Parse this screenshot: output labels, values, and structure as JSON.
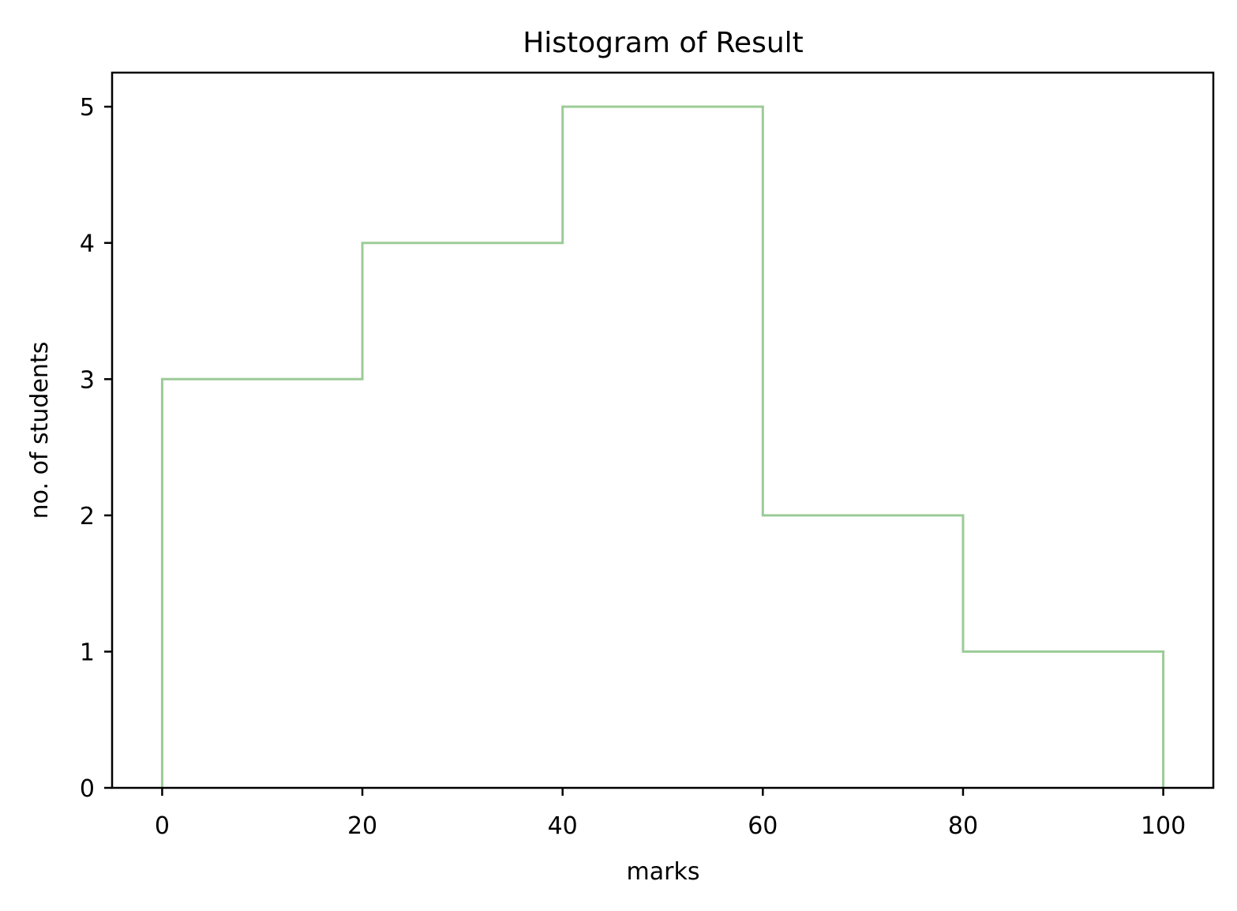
{
  "chart_data": {
    "type": "histogram",
    "title": "Histogram of Result",
    "xlabel": "marks",
    "ylabel": "no. of students",
    "bin_edges": [
      0,
      20,
      40,
      60,
      80,
      100
    ],
    "counts": [
      3,
      4,
      5,
      2,
      1
    ],
    "xlim": [
      -5,
      105
    ],
    "ylim": [
      0,
      5.25
    ],
    "xticks": [
      0,
      20,
      40,
      60,
      80,
      100
    ],
    "yticks": [
      0,
      1,
      2,
      3,
      4,
      5
    ],
    "xtick_labels": [
      "0",
      "20",
      "40",
      "60",
      "80",
      "100"
    ],
    "ytick_labels": [
      "0",
      "1",
      "2",
      "3",
      "4",
      "5"
    ],
    "histtype": "step",
    "color": "#9ccb98",
    "grid": false
  }
}
